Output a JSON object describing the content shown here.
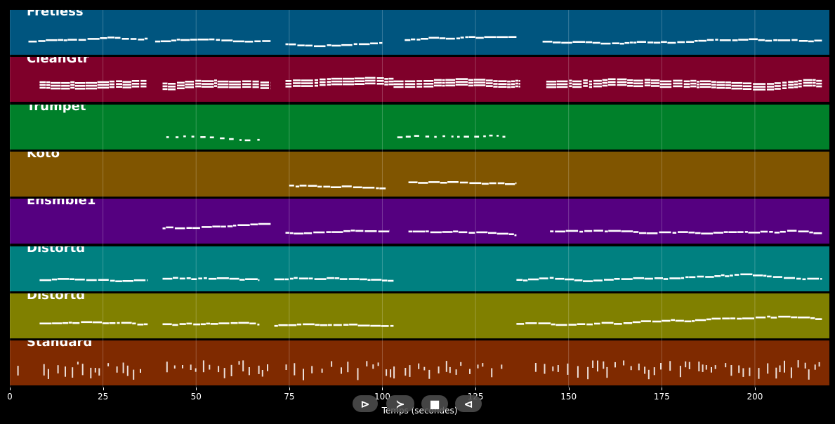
{
  "chart_data": {
    "type": "piano-roll",
    "xlabel": "Temps (secondes)",
    "xlim": [
      0,
      220
    ],
    "x_ticks": [
      0,
      25,
      50,
      75,
      100,
      125,
      150,
      175,
      200
    ],
    "tracks": [
      {
        "name": "Fretless",
        "color": "#00557f",
        "segments": [
          [
            5,
            37
          ],
          [
            39,
            70
          ],
          [
            74,
            100
          ],
          [
            106,
            136
          ],
          [
            143,
            218
          ]
        ],
        "pattern": "mono"
      },
      {
        "name": "CleanGtr",
        "color": "#7f002a",
        "segments": [
          [
            8,
            37
          ],
          [
            41,
            70
          ],
          [
            74,
            103
          ],
          [
            103,
            137
          ],
          [
            144,
            218
          ]
        ],
        "pattern": "chords"
      },
      {
        "name": "Trumpet",
        "color": "#00802a",
        "segments": [
          [
            42,
            68
          ],
          [
            104,
            133
          ]
        ],
        "pattern": "sparse"
      },
      {
        "name": "Koto",
        "color": "#805500",
        "segments": [
          [
            75,
            101
          ],
          [
            107,
            136
          ]
        ],
        "pattern": "mono"
      },
      {
        "name": "Ensmble1",
        "color": "#550080",
        "segments": [
          [
            41,
            70
          ],
          [
            74,
            102
          ],
          [
            107,
            136
          ],
          [
            145,
            218
          ]
        ],
        "pattern": "mono"
      },
      {
        "name": "Distortd",
        "color": "#008080",
        "segments": [
          [
            8,
            37
          ],
          [
            41,
            67
          ],
          [
            71,
            103
          ],
          [
            136,
            218
          ]
        ],
        "pattern": "mono"
      },
      {
        "name": "Distortd",
        "color": "#808000",
        "segments": [
          [
            8,
            37
          ],
          [
            41,
            67
          ],
          [
            71,
            103
          ],
          [
            136,
            218
          ]
        ],
        "pattern": "mono"
      },
      {
        "name": "Standard",
        "color": "#7f2a00",
        "segments": [
          [
            2,
            4
          ],
          [
            9,
            37
          ],
          [
            42,
            70
          ],
          [
            74,
            103
          ],
          [
            106,
            134
          ],
          [
            141,
            218
          ]
        ],
        "pattern": "drums"
      }
    ]
  },
  "controls": [
    {
      "name": "play",
      "label": "⊳"
    },
    {
      "name": "forward",
      "label": "≻"
    },
    {
      "name": "stop",
      "label": "■"
    },
    {
      "name": "back",
      "label": "⊲"
    }
  ]
}
